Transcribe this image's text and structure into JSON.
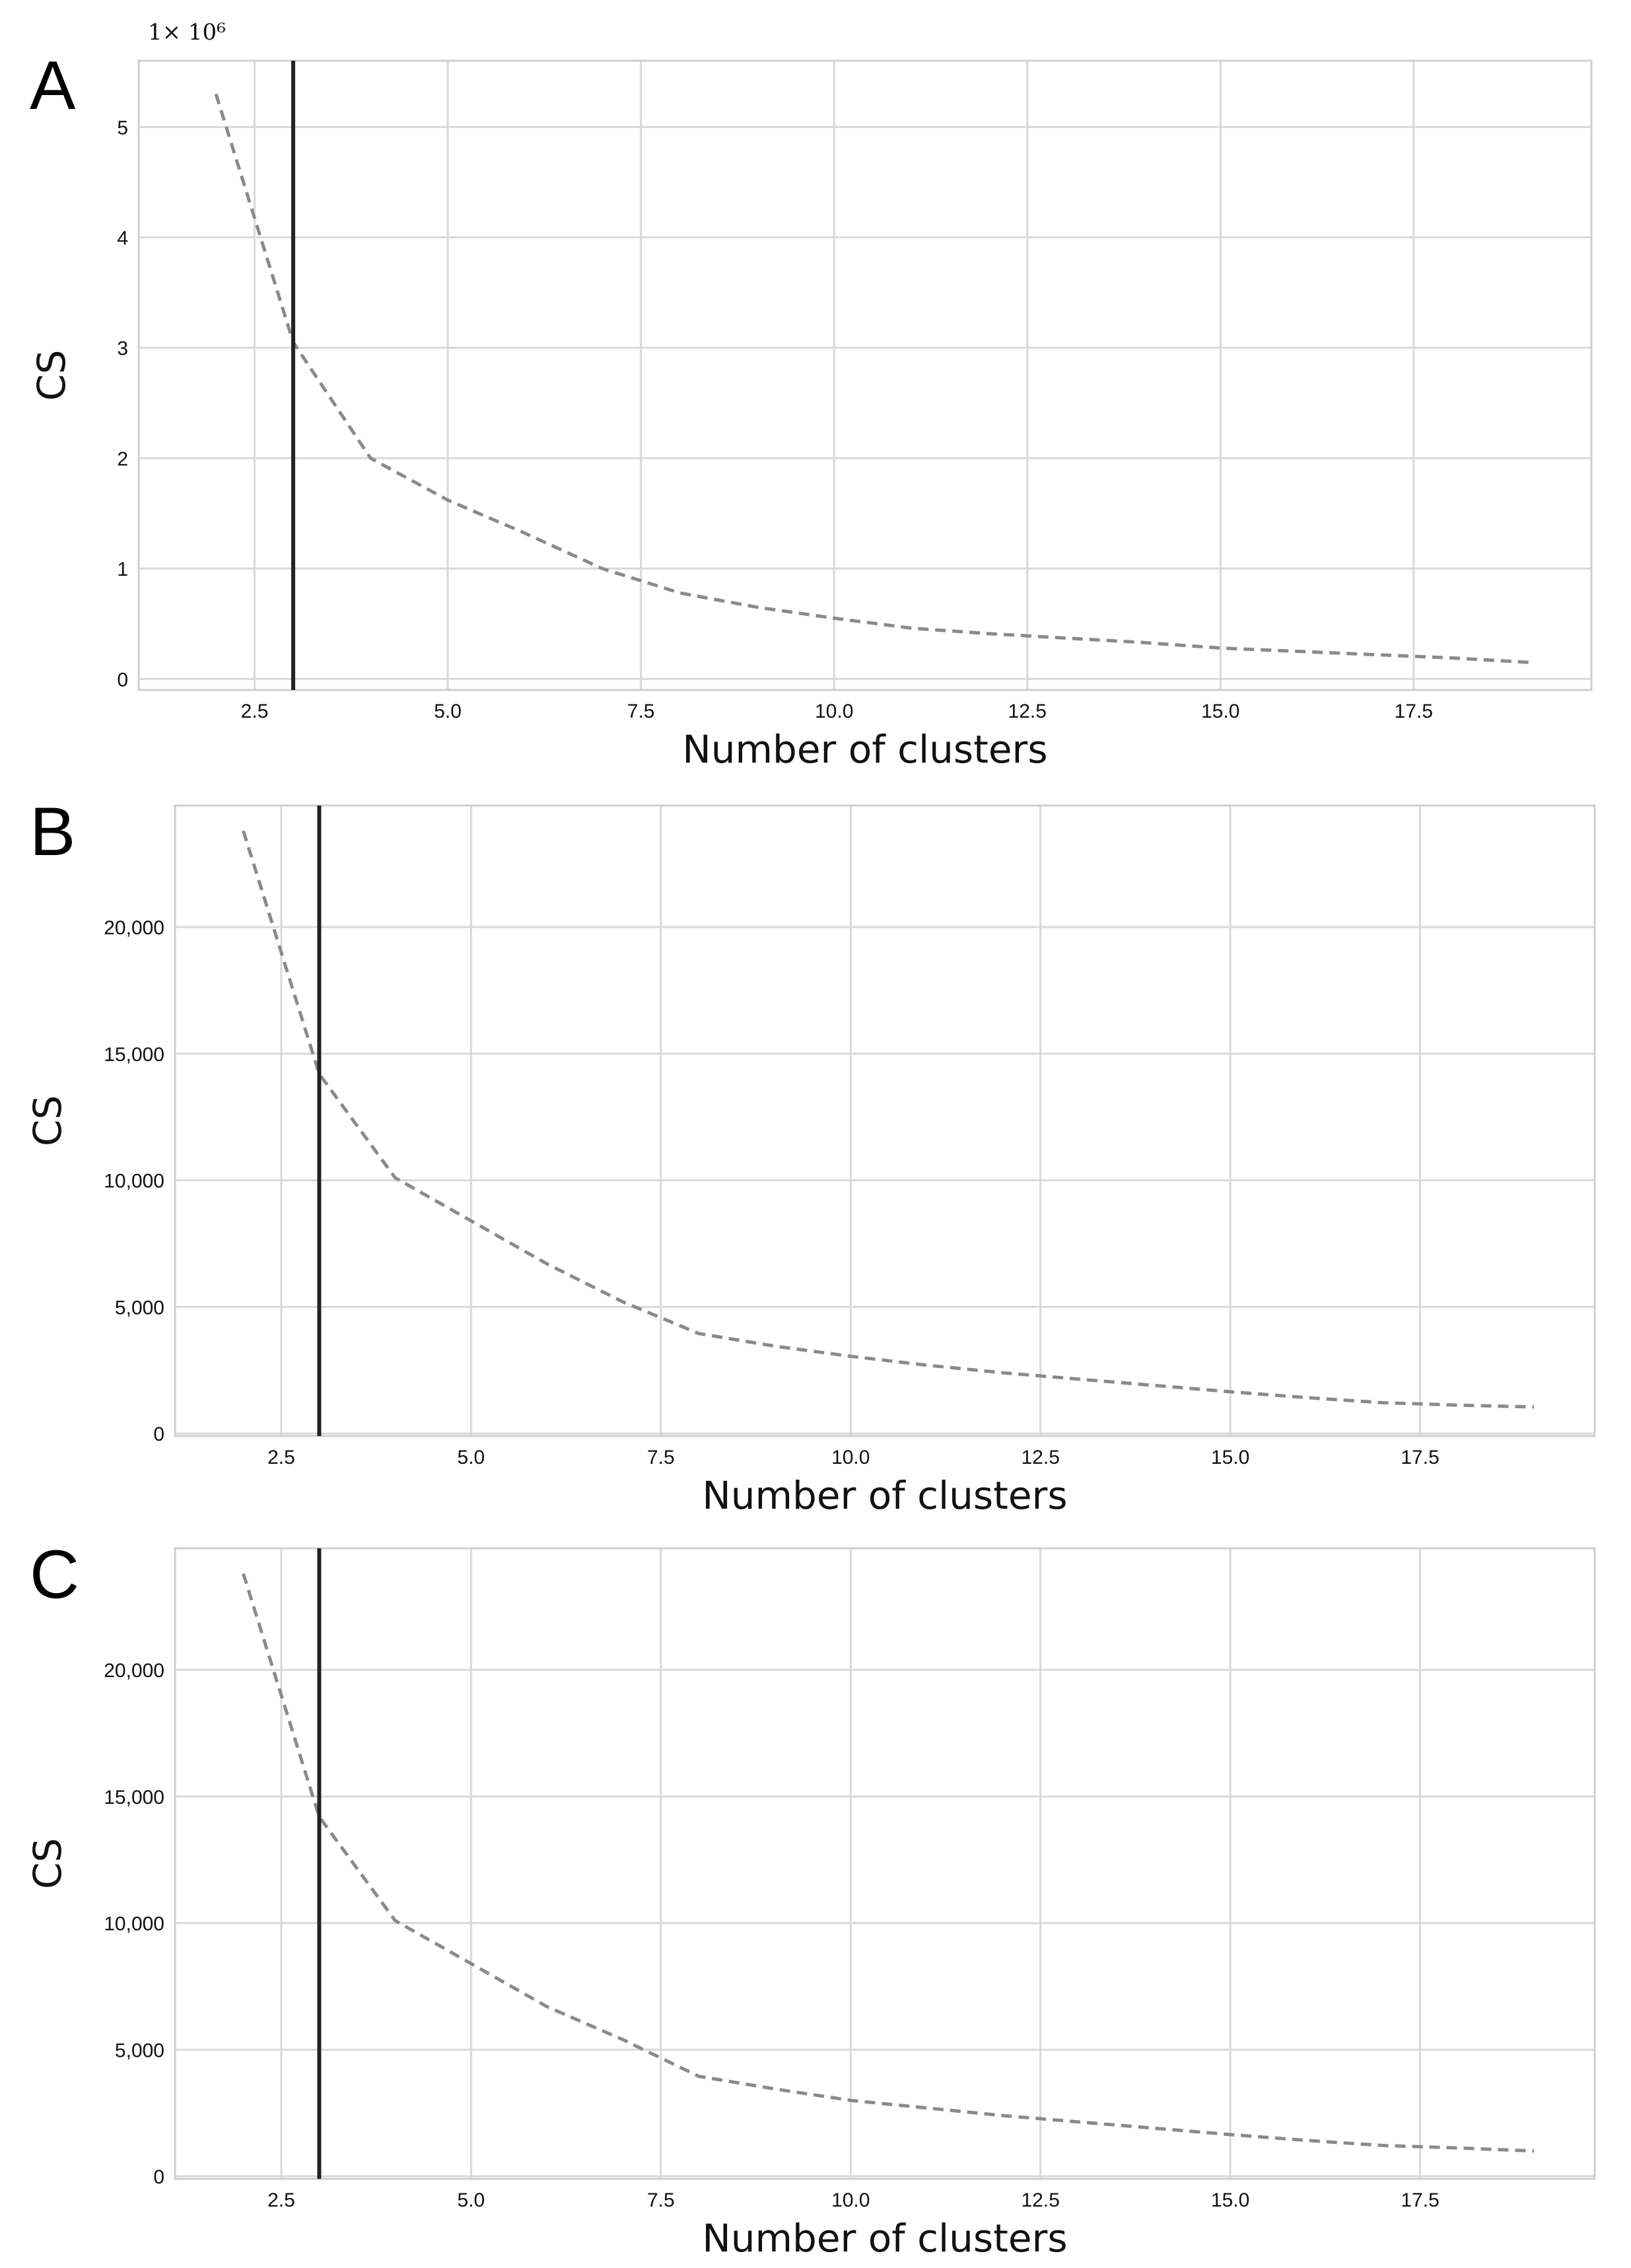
{
  "figure": {
    "colors": {
      "series": "#8a8a8a",
      "marker_line": "#222222",
      "grid": "#d9d9d9",
      "frame": "#cfcfcf",
      "text": "#111111"
    }
  },
  "chart_data": [
    {
      "panel": "A",
      "type": "line",
      "xlabel": "Number of clusters",
      "ylabel": "CS",
      "y_multiplier_label": "1× 10⁶",
      "xlim": [
        1.0,
        19.8
      ],
      "ylim": [
        -0.1,
        5.6
      ],
      "xticks": [
        2.5,
        5.0,
        7.5,
        10.0,
        12.5,
        15.0,
        17.5
      ],
      "xtick_labels": [
        "2.5",
        "5.0",
        "7.5",
        "10.0",
        "12.5",
        "15.0",
        "17.5"
      ],
      "yticks": [
        0,
        1,
        2,
        3,
        4,
        5
      ],
      "ytick_labels": [
        "0",
        "1",
        "2",
        "3",
        "4",
        "5"
      ],
      "grid": true,
      "vertical_line_x": 3,
      "series": [
        {
          "name": "CS",
          "x": [
            2,
            3,
            4,
            5,
            6,
            7,
            8,
            9,
            10,
            11,
            12,
            13,
            14,
            15,
            16,
            17,
            18,
            19
          ],
          "values": [
            5.3,
            3.05,
            2.0,
            1.62,
            1.32,
            1.0,
            0.78,
            0.65,
            0.55,
            0.46,
            0.41,
            0.37,
            0.33,
            0.28,
            0.25,
            0.22,
            0.19,
            0.15
          ]
        }
      ]
    },
    {
      "panel": "B",
      "type": "line",
      "xlabel": "Number of clusters",
      "ylabel": "CS",
      "xlim": [
        1.1,
        19.8
      ],
      "ylim": [
        -100,
        24800
      ],
      "xticks": [
        2.5,
        5.0,
        7.5,
        10.0,
        12.5,
        15.0,
        17.5
      ],
      "xtick_labels": [
        "2.5",
        "5.0",
        "7.5",
        "10.0",
        "12.5",
        "15.0",
        "17.5"
      ],
      "yticks": [
        0,
        5000,
        10000,
        15000,
        20000
      ],
      "ytick_labels": [
        "0",
        "5,000",
        "10,000",
        "15,000",
        "20,000"
      ],
      "grid": true,
      "vertical_line_x": 3,
      "series": [
        {
          "name": "CS",
          "x": [
            2,
            3,
            4,
            5,
            6,
            7,
            8,
            9,
            10,
            11,
            12,
            13,
            14,
            15,
            16,
            17,
            18,
            19
          ],
          "values": [
            23800,
            14200,
            10100,
            8400,
            6700,
            5200,
            3950,
            3450,
            3050,
            2700,
            2400,
            2150,
            1900,
            1650,
            1420,
            1220,
            1120,
            1050
          ]
        }
      ]
    },
    {
      "panel": "C",
      "type": "line",
      "xlabel": "Number of clusters",
      "ylabel": "CS",
      "xlim": [
        1.1,
        19.8
      ],
      "ylim": [
        -100,
        24800
      ],
      "xticks": [
        2.5,
        5.0,
        7.5,
        10.0,
        12.5,
        15.0,
        17.5
      ],
      "xtick_labels": [
        "2.5",
        "5.0",
        "7.5",
        "10.0",
        "12.5",
        "15.0",
        "17.5"
      ],
      "yticks": [
        0,
        5000,
        10000,
        15000,
        20000
      ],
      "ytick_labels": [
        "0",
        "5,000",
        "10,000",
        "15,000",
        "20,000"
      ],
      "grid": true,
      "vertical_line_x": 3,
      "series": [
        {
          "name": "CS",
          "x": [
            2,
            3,
            4,
            5,
            6,
            7,
            8,
            9,
            10,
            11,
            12,
            13,
            14,
            15,
            16,
            17,
            18,
            19
          ],
          "values": [
            23800,
            14200,
            10100,
            8400,
            6700,
            5400,
            3950,
            3450,
            3000,
            2700,
            2400,
            2150,
            1900,
            1650,
            1420,
            1220,
            1120,
            1000
          ]
        }
      ]
    }
  ]
}
